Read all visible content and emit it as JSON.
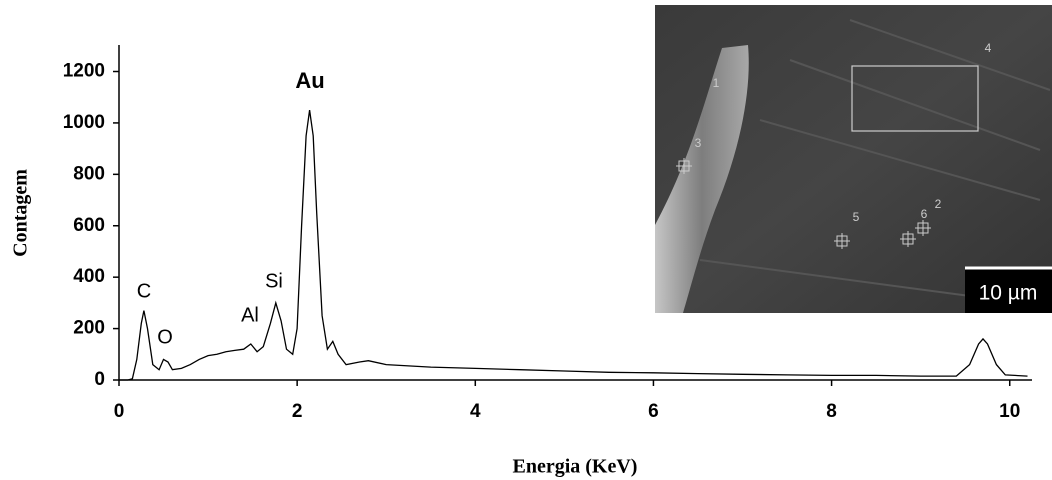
{
  "chart_data": {
    "type": "line",
    "xlabel": "Energia (KeV)",
    "ylabel": "Contagem",
    "x": [
      0,
      0.1,
      0.15,
      0.2,
      0.25,
      0.28,
      0.32,
      0.38,
      0.45,
      0.5,
      0.55,
      0.6,
      0.7,
      0.8,
      0.9,
      1.0,
      1.1,
      1.2,
      1.3,
      1.4,
      1.48,
      1.55,
      1.62,
      1.7,
      1.76,
      1.82,
      1.88,
      1.95,
      2.0,
      2.05,
      2.1,
      2.14,
      2.18,
      2.22,
      2.28,
      2.34,
      2.4,
      2.46,
      2.55,
      2.7,
      2.8,
      3.0,
      3.5,
      4.0,
      4.5,
      5.0,
      5.5,
      6.0,
      6.5,
      7.0,
      7.5,
      8.0,
      8.5,
      9.0,
      9.4,
      9.55,
      9.65,
      9.7,
      9.75,
      9.85,
      9.95,
      10.2
    ],
    "series": [
      {
        "color": "#000000",
        "values": [
          0,
          0,
          5,
          80,
          220,
          270,
          200,
          60,
          40,
          80,
          70,
          40,
          45,
          60,
          80,
          95,
          100,
          110,
          115,
          120,
          140,
          110,
          130,
          220,
          300,
          230,
          120,
          100,
          200,
          600,
          950,
          1050,
          950,
          650,
          250,
          120,
          150,
          100,
          60,
          70,
          75,
          60,
          50,
          45,
          40,
          35,
          30,
          28,
          25,
          22,
          20,
          18,
          18,
          15,
          15,
          60,
          140,
          160,
          140,
          60,
          20,
          15
        ]
      }
    ],
    "xlim": [
      0,
      10.25
    ],
    "ylim": [
      0,
      1300
    ],
    "xticks": [
      0,
      2,
      4,
      6,
      8,
      10
    ],
    "yticks": [
      0,
      200,
      400,
      600,
      800,
      1000,
      1200
    ],
    "annotations": [
      "C",
      "O",
      "Al",
      "Si",
      "Au"
    ],
    "inset": {
      "markers": [
        "1",
        "2",
        "3",
        "4",
        "5",
        "6"
      ],
      "scale_bar": "10 µm"
    }
  }
}
